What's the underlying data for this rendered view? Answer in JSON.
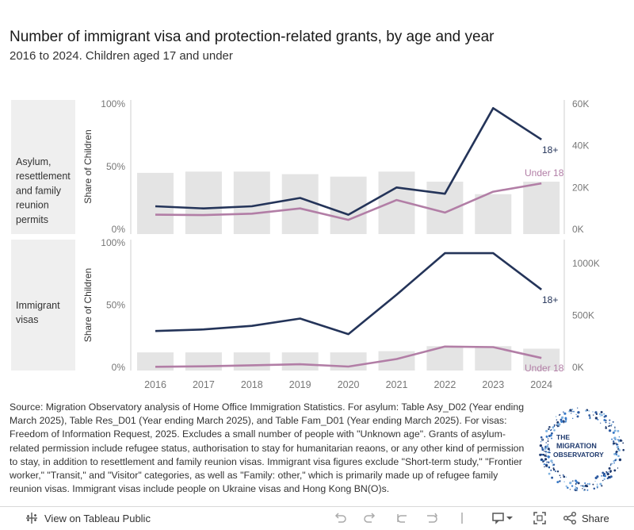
{
  "header": {
    "title": "Number of immigrant visa and protection-related grants, by age and year",
    "subtitle": "2016 to 2024. Children aged 17 and under"
  },
  "colors": {
    "adult_line": "#243459",
    "child_line": "#b27ea6",
    "bars": "#e4e4e4",
    "panel_label_bg": "#efefef"
  },
  "chart_data": [
    {
      "type": "bar+line",
      "panel_label": "Asylum, resettlement and family reunion permits",
      "ylabel": "Share of Children",
      "categories": [
        "2016",
        "2017",
        "2018",
        "2019",
        "2020",
        "2021",
        "2022",
        "2023",
        "2024"
      ],
      "left_axis": {
        "ticks": [
          "0%",
          "50%",
          "100%"
        ],
        "ylim": [
          0,
          100
        ]
      },
      "right_axis": {
        "ticks": [
          "0K",
          "20K",
          "40K",
          "60K"
        ],
        "ylim": [
          0,
          60000
        ]
      },
      "bars_share_of_children": [
        45,
        46,
        46,
        44,
        42,
        46,
        38,
        28,
        38
      ],
      "series": [
        {
          "name": "18+",
          "label": "18+",
          "values": [
            11000,
            10000,
            11000,
            15000,
            7000,
            20000,
            17000,
            58000,
            43000
          ]
        },
        {
          "name": "Under 18",
          "label": "Under 18",
          "values": [
            7000,
            6800,
            7500,
            10000,
            4500,
            14000,
            8000,
            18000,
            22000
          ]
        }
      ]
    },
    {
      "type": "bar+line",
      "panel_label": "Immigrant visas",
      "ylabel": "Share of Children",
      "categories": [
        "2016",
        "2017",
        "2018",
        "2019",
        "2020",
        "2021",
        "2022",
        "2023",
        "2024"
      ],
      "left_axis": {
        "ticks": [
          "0%",
          "50%",
          "100%"
        ],
        "ylim": [
          0,
          100
        ]
      },
      "right_axis": {
        "ticks": [
          "0K",
          "500K",
          "1000K"
        ],
        "ylim": [
          0,
          1200000
        ]
      },
      "bars_share_of_children": [
        12,
        12,
        12,
        12,
        12,
        13,
        17,
        17,
        15
      ],
      "series": [
        {
          "name": "18+",
          "label": "18+",
          "values": [
            350000,
            365000,
            400000,
            470000,
            320000,
            700000,
            1100000,
            1100000,
            750000
          ]
        },
        {
          "name": "Under 18",
          "label": "Under 18",
          "values": [
            5000,
            10000,
            20000,
            30000,
            8000,
            80000,
            200000,
            195000,
            90000
          ]
        }
      ]
    }
  ],
  "source": "Source: Migration Observatory analysis of Home Office Immigration Statistics. For asylum: Table Asy_D02 (Year ending March 2025), Table Res_D01 (Year ending March 2025), and Table Fam_D01 (Year ending March 2025). For visas: Freedom of Information Request, 2025. Excludes a small number of people with \"Unknown age\". Grants of asylum-related permission include refugee status, authorisation to stay for humanitarian reaons, or any other kind of permission to stay, in addition to resettlement and family reunion visas. Immigrant visa figures exclude \"Short-term study,\" \"Frontier worker,\" \"Transit,\" and \"Visitor\" categories, as well as \"Family: other,\" which is primarily made up of refugee family reunion visas. Immigrant visas include people on Ukraine visas and Hong Kong BN(O)s.",
  "logo": {
    "text": "THE MIGRATION OBSERVATORY",
    "lines": [
      "THE",
      "MIGRATION",
      "OBSERVATORY"
    ]
  },
  "toolbar": {
    "view_label": "View on Tableau Public",
    "share_label": "Share"
  }
}
